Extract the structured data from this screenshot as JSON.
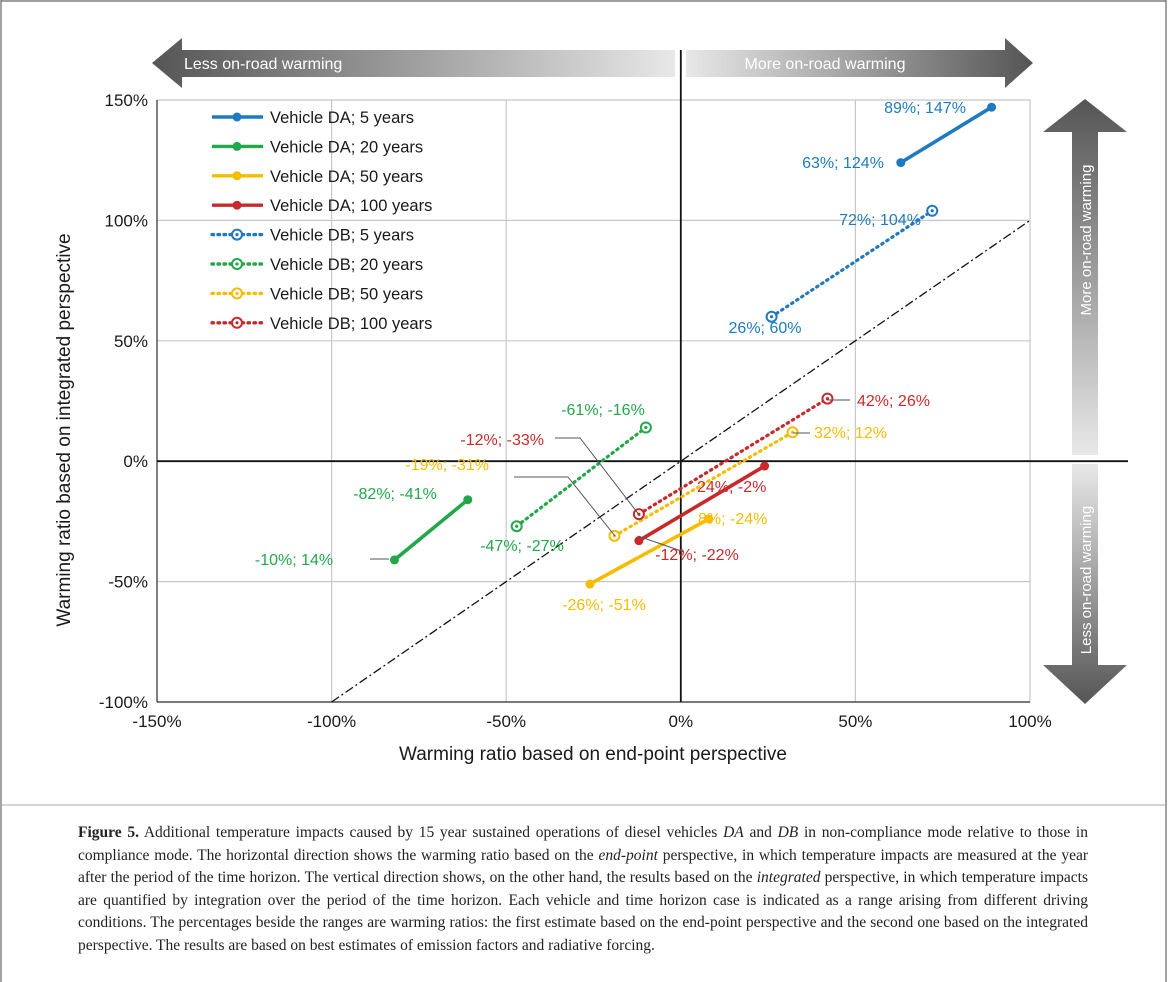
{
  "chart_data": {
    "type": "line",
    "xlabel": "Warming ratio based on end-point perspective",
    "ylabel": "Warming ratio based on integrated perspective",
    "xlim": [
      -150,
      100
    ],
    "ylim": [
      -100,
      150
    ],
    "x_ticks": [
      "-150%",
      "-100%",
      "-50%",
      "0%",
      "50%",
      "100%"
    ],
    "y_ticks": [
      "-100%",
      "-50%",
      "0%",
      "50%",
      "100%",
      "150%"
    ],
    "x_tick_values": [
      -150,
      -100,
      -50,
      0,
      50,
      100
    ],
    "y_tick_values": [
      -100,
      -50,
      0,
      50,
      100,
      150
    ],
    "grid": true,
    "legend_position": "top-left",
    "reference_line": {
      "style": "dash-dot",
      "slope": 1,
      "intercept": 0
    },
    "arrows": {
      "left": "Less on-road warming",
      "right": "More on-road warming",
      "up": "More on-road warming",
      "down": "Less on-road warming"
    },
    "series": [
      {
        "name": "Vehicle DA; 5 years",
        "color": "#1f7ac0",
        "style": "solid",
        "points": [
          [
            63,
            124
          ],
          [
            89,
            147
          ]
        ],
        "labels": [
          "63%; 124%",
          "89%; 147%"
        ]
      },
      {
        "name": "Vehicle DA; 20 years",
        "color": "#22a84a",
        "style": "solid",
        "points": [
          [
            -82,
            -41
          ],
          [
            -61,
            -16
          ]
        ],
        "labels": [
          "-82%; -41%",
          "-61%; -16%"
        ]
      },
      {
        "name": "Vehicle DA; 50 years",
        "color": "#f5bc00",
        "style": "solid",
        "points": [
          [
            -26,
            -51
          ],
          [
            8,
            -24
          ]
        ],
        "labels": [
          "-26%; -51%",
          "8%; -24%"
        ]
      },
      {
        "name": "Vehicle DA; 100 years",
        "color": "#c72a2a",
        "style": "solid",
        "points": [
          [
            -12,
            -33
          ],
          [
            24,
            -2
          ]
        ],
        "labels": [
          "-12%; -33%",
          "24%; -2%"
        ]
      },
      {
        "name": "Vehicle DB; 5 years",
        "color": "#1f7ac0",
        "style": "dotted",
        "points": [
          [
            26,
            60
          ],
          [
            72,
            104
          ]
        ],
        "labels": [
          "26%; 60%",
          "72%; 104%"
        ]
      },
      {
        "name": "Vehicle DB; 20 years",
        "color": "#22a84a",
        "style": "dotted",
        "points": [
          [
            -47,
            -27
          ],
          [
            -10,
            14
          ]
        ],
        "labels": [
          "-47%; -27%",
          "-10%; 14%"
        ]
      },
      {
        "name": "Vehicle DB; 50 years",
        "color": "#f5bc00",
        "style": "dotted",
        "points": [
          [
            -19,
            -31
          ],
          [
            32,
            12
          ]
        ],
        "labels": [
          "-19%; -31%",
          "32%; 12%"
        ]
      },
      {
        "name": "Vehicle DB; 100 years",
        "color": "#c72a2a",
        "style": "dotted",
        "points": [
          [
            -12,
            -22
          ],
          [
            42,
            26
          ]
        ],
        "labels": [
          "-12%; -22%",
          "42%; 26%"
        ]
      }
    ]
  },
  "caption": {
    "label": "Figure 5.",
    "segments": [
      {
        "text": " Additional temperature impacts caused by 15 year sustained operations of diesel vehicles "
      },
      {
        "text": "DA",
        "italic": true
      },
      {
        "text": " and "
      },
      {
        "text": "DB",
        "italic": true
      },
      {
        "text": " in non-compliance mode relative to those in compliance mode. The horizontal direction shows the warming ratio based on the "
      },
      {
        "text": "end-point",
        "italic": true
      },
      {
        "text": " perspective, in which temperature impacts are measured at the year after the period of the time horizon. The vertical direction shows, on the other hand, the results based on the "
      },
      {
        "text": "integrated",
        "italic": true
      },
      {
        "text": " perspective, in which temperature impacts are quantified by integration over the period of the time horizon. Each vehicle and time horizon case is indicated as a range arising from different driving conditions. The percentages beside the ranges are warming ratios: the first estimate based on the end-point perspective and the second one based on the integrated perspective. The results are based on best estimates of emission factors and radiative forcing."
      }
    ]
  }
}
